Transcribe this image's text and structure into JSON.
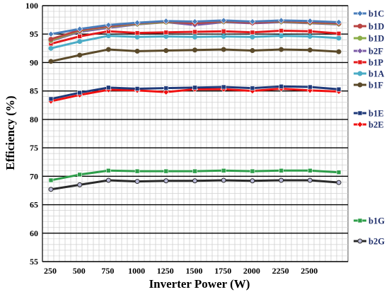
{
  "chart_data": {
    "type": "line",
    "xlabel": "Inverter Power (W)",
    "ylabel": "Efficiency  (%)",
    "x": [
      250,
      500,
      750,
      1000,
      1250,
      1500,
      1750,
      2000,
      2250,
      2500,
      2750
    ],
    "x_tick_labels": [
      "250",
      "500",
      "750",
      "1000",
      "1250",
      "1500",
      "1750",
      "2000",
      "2250",
      "2500"
    ],
    "ylim": [
      55,
      100
    ],
    "y_ticks": [
      55,
      60,
      65,
      70,
      75,
      80,
      85,
      90,
      95,
      100
    ],
    "grid": true,
    "legend_position": "right",
    "series": [
      {
        "name": "b1C",
        "color": "#4a7ebb",
        "marker": "diamond",
        "values": [
          95.0,
          95.9,
          96.6,
          97.0,
          97.3,
          97.2,
          97.4,
          97.2,
          97.4,
          97.3,
          97.1
        ]
      },
      {
        "name": "b1D",
        "color": "#b94442",
        "marker": "circle",
        "values": [
          94.1,
          95.7,
          96.4,
          96.9,
          97.2,
          96.9,
          97.3,
          97.0,
          97.3,
          97.1,
          96.9
        ]
      },
      {
        "name": "b1D",
        "color": "#8cae4a",
        "marker": "circle",
        "values": [
          93.9,
          95.6,
          96.3,
          96.8,
          97.1,
          97.0,
          97.2,
          97.1,
          97.2,
          97.0,
          96.8
        ]
      },
      {
        "name": "b2F",
        "color": "#7b5ca6",
        "marker": "diamond",
        "values": [
          93.8,
          95.4,
          96.1,
          96.7,
          97.1,
          96.6,
          97.1,
          96.9,
          97.1,
          96.9,
          96.7
        ]
      },
      {
        "name": "b1P",
        "color": "#e31a1c",
        "marker": "square",
        "values": [
          93.3,
          94.6,
          95.5,
          95.2,
          95.3,
          95.4,
          95.5,
          95.3,
          95.6,
          95.5,
          95.1
        ]
      },
      {
        "name": "b1A",
        "color": "#4bacc6",
        "marker": "circle",
        "values": [
          92.5,
          93.7,
          94.7,
          94.5,
          94.6,
          94.5,
          94.6,
          94.5,
          94.7,
          94.6,
          94.3
        ]
      },
      {
        "name": "b1F",
        "color": "#5b4a2a",
        "marker": "circle",
        "values": [
          90.2,
          91.3,
          92.3,
          92.0,
          92.1,
          92.2,
          92.3,
          92.1,
          92.3,
          92.2,
          91.9
        ]
      },
      {
        "name": "b1E",
        "color": "#1f3a7a",
        "marker": "square",
        "values": [
          83.6,
          84.7,
          85.6,
          85.4,
          85.5,
          85.6,
          85.7,
          85.5,
          85.8,
          85.7,
          85.3
        ]
      },
      {
        "name": "b2E",
        "color": "#f01010",
        "marker": "diamond",
        "values": [
          83.2,
          84.3,
          85.2,
          85.1,
          84.8,
          85.3,
          85.3,
          85.0,
          85.4,
          85.1,
          84.9
        ]
      },
      {
        "name": "b1G",
        "color": "#2e9e4a",
        "marker": "square",
        "values": [
          69.3,
          70.3,
          71.0,
          70.9,
          70.9,
          70.9,
          71.0,
          70.9,
          71.0,
          71.0,
          70.7
        ]
      },
      {
        "name": "b2G",
        "color": "#2a2a2a",
        "marker": "circle",
        "values": [
          67.7,
          68.5,
          69.3,
          69.1,
          69.2,
          69.2,
          69.3,
          69.2,
          69.3,
          69.3,
          68.9
        ]
      }
    ]
  }
}
